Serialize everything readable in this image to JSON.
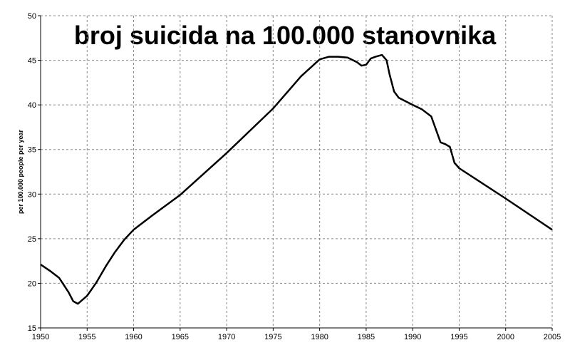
{
  "chart_data": {
    "type": "line",
    "title": "broj suicida na 100.000 stanovnika",
    "y_label": "per 100.000 people per year",
    "x": [
      1950,
      1951,
      1952,
      1953,
      1953.5,
      1954,
      1955,
      1956,
      1957,
      1958,
      1959,
      1960,
      1962,
      1965,
      1970,
      1975,
      1978,
      1980,
      1981,
      1982,
      1983,
      1984,
      1984.5,
      1985,
      1985.5,
      1986,
      1986.7,
      1987.2,
      1987.5,
      1988,
      1988.5,
      1990,
      1991,
      1992,
      1993,
      1993.5,
      1994,
      1994.5,
      1995,
      2000,
      2005
    ],
    "values": [
      22.1,
      21.4,
      20.6,
      19.0,
      18.0,
      17.7,
      18.6,
      20.1,
      21.9,
      23.5,
      24.9,
      26.0,
      27.6,
      29.9,
      34.6,
      39.6,
      43.2,
      45.1,
      45.4,
      45.4,
      45.3,
      44.8,
      44.4,
      44.5,
      45.2,
      45.4,
      45.6,
      45.0,
      43.5,
      41.5,
      40.8,
      40.0,
      39.5,
      38.7,
      35.8,
      35.6,
      35.3,
      33.5,
      32.9,
      29.5,
      26.0
    ],
    "color": "#000000",
    "xlim": [
      1950,
      2005
    ],
    "xticks": [
      1950,
      1955,
      1960,
      1965,
      1970,
      1975,
      1980,
      1985,
      1990,
      1995,
      2000,
      2005
    ],
    "ylim": [
      15,
      50
    ],
    "yticks": [
      15,
      20,
      25,
      30,
      35,
      40,
      45,
      50
    ],
    "grid": true
  }
}
